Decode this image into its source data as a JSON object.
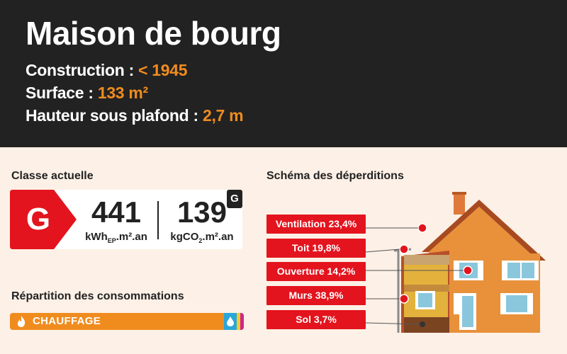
{
  "header": {
    "title": "Maison de bourg",
    "construction_label": "Construction : ",
    "construction_value": "< 1945",
    "surface_label": "Surface : ",
    "surface_value": "133 m²",
    "hauteur_label": "Hauteur sous plafond : ",
    "hauteur_value": "2,7 m"
  },
  "classe": {
    "section_label": "Classe actuelle",
    "energy_class": "G",
    "ghg_class": "G",
    "energy_value": "441",
    "energy_unit_main": "kWh",
    "energy_unit_sub": "EP",
    "energy_unit_tail": ".m².an",
    "ghg_value": "139",
    "ghg_unit_main": "kgCO",
    "ghg_unit_sub": "2",
    "ghg_unit_tail": ".m².an"
  },
  "consommations": {
    "section_label": "Répartition des consommations",
    "main_label": "CHAUFFAGE"
  },
  "deperditions": {
    "section_label": "Schéma des déperditions",
    "items": [
      {
        "label": "Ventilation 23,4%"
      },
      {
        "label": "Toit 19,8%"
      },
      {
        "label": "Ouverture 14,2%"
      },
      {
        "label": "Murs 38,9%"
      },
      {
        "label": "Sol 3,7%"
      }
    ]
  },
  "colors": {
    "accent_orange": "#f08c1e",
    "class_g_red": "#e3141e",
    "header_bg": "#222222",
    "page_bg": "#fdf0e6"
  }
}
